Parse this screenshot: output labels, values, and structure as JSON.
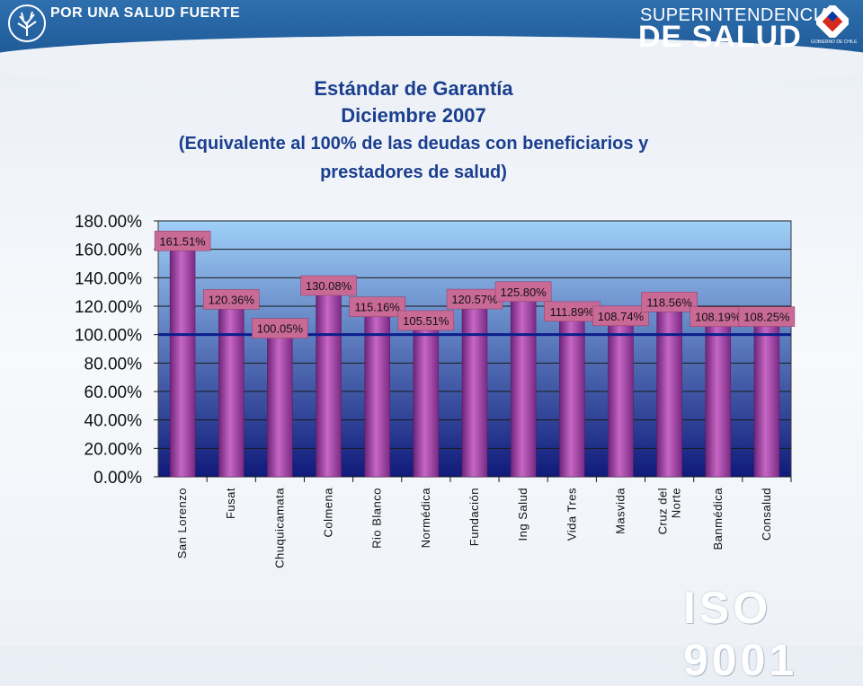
{
  "header": {
    "slogan": "POR UNA SALUD FUERTE",
    "brand_top": "SUPERINTENDENCIA",
    "brand_bottom": "DE SALUD",
    "gov_label": "GOBIERNO DE CHILE",
    "band_color": "#245f9e"
  },
  "title": {
    "line1": "Estándar de Garantía",
    "line2": "Diciembre 2007",
    "line3": "(Equivalente al 100% de las deudas con beneficiarios y",
    "line4": "prestadores de salud)"
  },
  "footer": {
    "iso": "ISO 9001"
  },
  "chart_data": {
    "type": "bar",
    "categories": [
      "San Lorenzo",
      "Fusat",
      "Chuquicamata",
      "Colmena",
      "Rio Blanco",
      "Normédica",
      "Fundación",
      "Ing Salud",
      "Vida Tres",
      "Masvida",
      "Cruz del Norte",
      "Banmédica",
      "Consalud"
    ],
    "category_lines": [
      [
        "San Lorenzo"
      ],
      [
        "Fusat"
      ],
      [
        "Chuquicamata"
      ],
      [
        "Colmena"
      ],
      [
        "Rio Blanco"
      ],
      [
        "Normédica"
      ],
      [
        "Fundación"
      ],
      [
        "Ing Salud"
      ],
      [
        "Vida Tres"
      ],
      [
        "Masvida"
      ],
      [
        "Cruz del",
        "Norte"
      ],
      [
        "Banmédica"
      ],
      [
        "Consalud"
      ]
    ],
    "values": [
      161.51,
      120.36,
      100.05,
      130.08,
      115.16,
      105.51,
      120.57,
      125.8,
      111.89,
      108.74,
      118.56,
      108.19,
      108.25
    ],
    "labels": [
      "161.51%",
      "120.36%",
      "100.05%",
      "130.08%",
      "115.16%",
      "105.51%",
      "120.57%",
      "125.80%",
      "111.89%",
      "108.74%",
      "118.56%",
      "108.19%",
      "108.25%"
    ],
    "yticks": [
      "0.00%",
      "20.00%",
      "40.00%",
      "60.00%",
      "80.00%",
      "100.00%",
      "120.00%",
      "140.00%",
      "160.00%",
      "180.00%"
    ],
    "ylim": [
      0,
      180
    ],
    "reference_line": 100,
    "grid": true,
    "colors": {
      "bar": "#a04aa8",
      "label_bg": "#c96a96",
      "reference_line": "#0b1e8c",
      "plot_top": "#9fd0f8",
      "plot_bottom": "#101a7a"
    }
  }
}
